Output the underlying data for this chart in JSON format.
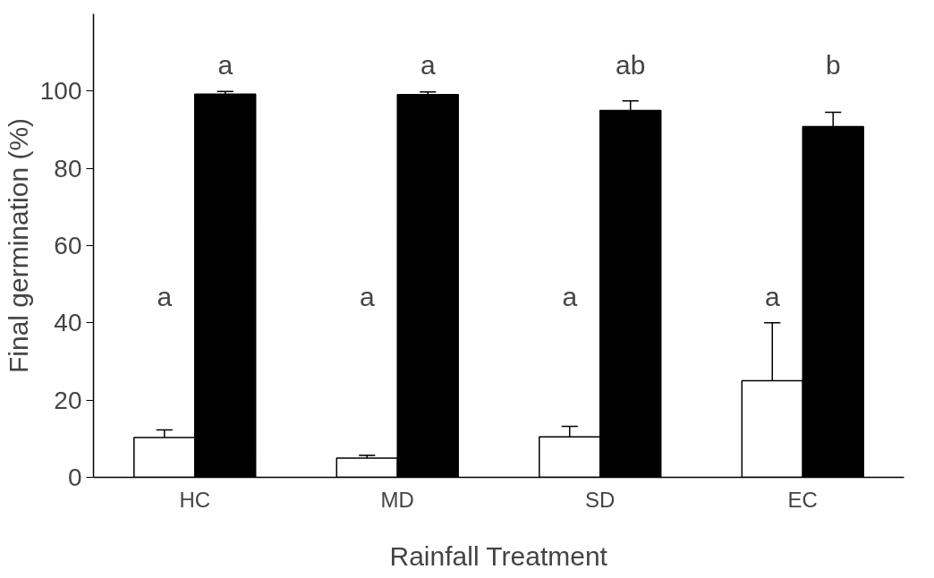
{
  "chart_data": {
    "type": "bar",
    "xlabel": "Rainfall Treatment",
    "ylabel": "Final germination (%)",
    "categories": [
      "HC",
      "MD",
      "SD",
      "EC"
    ],
    "series": [
      {
        "color": "#ffffff",
        "values": [
          10.3,
          5,
          10.5,
          25
        ],
        "errors": [
          [
            10.3,
            12.3
          ],
          [
            5,
            5.7
          ],
          [
            10.5,
            13.2
          ],
          [
            25,
            40
          ]
        ]
      },
      {
        "color": "#000000",
        "values": [
          99.2,
          99.1,
          95,
          90.8
        ],
        "errors": [
          [
            99.2,
            99.9
          ],
          [
            99.1,
            99.8
          ],
          [
            95,
            97.5
          ],
          [
            90.8,
            94.5
          ]
        ]
      }
    ],
    "ylim": [
      0,
      120
    ],
    "yticks": [
      0,
      20,
      40,
      60,
      80,
      100
    ],
    "grid": false,
    "annotations": [
      "a",
      "a",
      "a",
      "a",
      "a",
      "a",
      "ab",
      "b"
    ]
  }
}
